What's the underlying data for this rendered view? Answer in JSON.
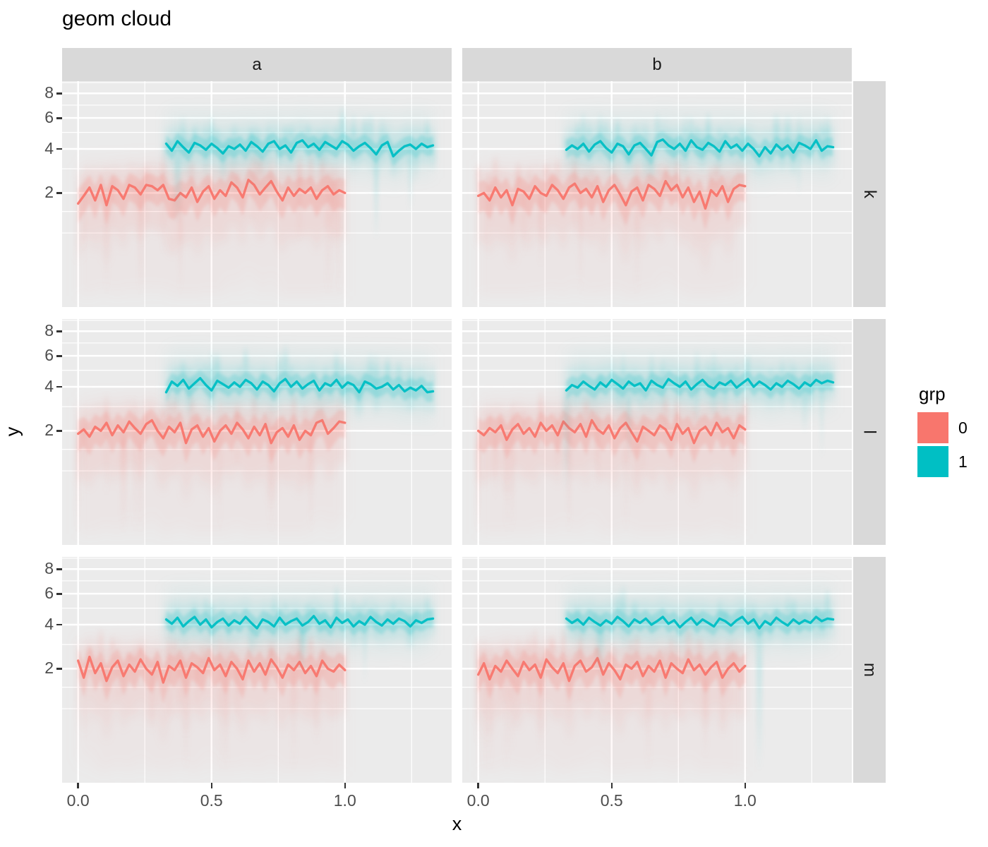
{
  "page": {
    "background": "#FFFFFF"
  },
  "chart_data": {
    "type": "line",
    "title": "geom cloud",
    "xlabel": "x",
    "ylabel": "y",
    "facet_cols": [
      "a",
      "b"
    ],
    "facet_rows": [
      "k",
      "l",
      "m"
    ],
    "x_ticks": [
      "0.0",
      "0.5",
      "1.0"
    ],
    "x_tick_values": [
      0,
      0.5,
      1
    ],
    "x_minor_values": [
      0.25,
      0.75,
      1.25
    ],
    "y_ticks": [
      "8",
      "6",
      "4",
      "2"
    ],
    "y_tick_values": [
      8,
      6,
      4,
      2
    ],
    "x_domain": [
      -0.06,
      1.4
    ],
    "y_axis": "sqrt-like",
    "grid": true,
    "legend_position": "right",
    "legend": {
      "title": "grp",
      "entries": [
        {
          "label": "0",
          "color": "#F8766D"
        },
        {
          "label": "1",
          "color": "#00BFC4"
        }
      ]
    },
    "colors": {
      "panel_bg": "#EBEBEB",
      "strip_bg": "#D9D9D9",
      "grid": "#FFFFFF",
      "tick_label": "#4D4D4D",
      "tick_mark": "#333333"
    },
    "cloud_style": {
      "0": {
        "bands": [
          [
            1.5,
            2.1,
            0.045,
            10
          ],
          [
            0.95,
            1.25,
            0.1,
            6
          ],
          [
            0.5,
            0.55,
            0.2,
            2
          ]
        ],
        "streaks": {
          "prob": 0.62,
          "up_max": 1.5,
          "down_max": 1.4,
          "deep_prob": 0.2,
          "deep_extra": 2.2,
          "blur": 3
        }
      },
      "1": {
        "bands": [
          [
            2.5,
            1.6,
            0.045,
            10
          ],
          [
            1.2,
            0.95,
            0.11,
            6
          ],
          [
            0.55,
            0.5,
            0.2,
            2
          ]
        ],
        "streaks": {
          "prob": 0.62,
          "up_max": 2.4,
          "down_max": 1.2,
          "deep_prob": 0.12,
          "deep_extra": 1.7,
          "blur": 3
        }
      }
    },
    "panels": [
      {
        "col": "a",
        "row": "k",
        "series": [
          {
            "grp": "0",
            "x_start": 0.0,
            "x_end": 1.0,
            "y": [
              1.65,
              1.9,
              2.2,
              1.75,
              2.3,
              1.6,
              2.25,
              2.1,
              1.8,
              2.3,
              2.2,
              1.95,
              2.3,
              2.25,
              2.1,
              2.3,
              1.8,
              1.75,
              2.0,
              1.85,
              2.2,
              1.7,
              2.05,
              2.25,
              1.8,
              2.1,
              1.9,
              2.4,
              2.2,
              1.85,
              2.5,
              2.3,
              1.95,
              2.2,
              2.45,
              2.05,
              1.75,
              2.2,
              1.9,
              2.15,
              2.0,
              2.2,
              1.8,
              2.1,
              2.25,
              1.95,
              2.1,
              2.0
            ]
          },
          {
            "grp": "1",
            "x_start": 0.33,
            "x_end": 1.33,
            "y": [
              4.3,
              3.9,
              4.45,
              4.1,
              3.8,
              4.35,
              4.2,
              3.95,
              4.3,
              4.05,
              3.75,
              4.15,
              4.0,
              4.25,
              3.9,
              4.4,
              4.15,
              3.85,
              4.3,
              4.45,
              4.0,
              4.2,
              3.8,
              4.35,
              4.5,
              4.1,
              4.3,
              3.95,
              4.4,
              4.2,
              4.0,
              4.45,
              4.25,
              3.9,
              4.15,
              4.35,
              4.05,
              3.7,
              4.2,
              4.4,
              3.6,
              3.9,
              4.15,
              4.25,
              4.0,
              4.3,
              4.1,
              4.2
            ]
          }
        ]
      },
      {
        "col": "b",
        "row": "k",
        "series": [
          {
            "grp": "0",
            "x_start": 0.0,
            "x_end": 1.0,
            "y": [
              1.9,
              2.0,
              1.75,
              2.2,
              1.85,
              2.1,
              1.6,
              2.15,
              2.05,
              1.8,
              2.25,
              2.0,
              1.9,
              2.3,
              2.1,
              1.8,
              2.2,
              2.35,
              2.0,
              2.15,
              1.85,
              2.25,
              1.7,
              2.1,
              2.3,
              1.95,
              1.6,
              2.05,
              2.2,
              1.75,
              2.3,
              2.15,
              1.9,
              2.45,
              2.1,
              2.3,
              1.85,
              2.2,
              1.7,
              2.05,
              1.5,
              2.1,
              1.9,
              2.25,
              1.7,
              2.15,
              2.3,
              2.25
            ]
          },
          {
            "grp": "1",
            "x_start": 0.33,
            "x_end": 1.33,
            "y": [
              3.95,
              4.2,
              4.0,
              4.3,
              3.85,
              4.25,
              4.45,
              4.05,
              3.8,
              4.3,
              4.15,
              3.7,
              4.2,
              4.35,
              4.0,
              3.65,
              4.4,
              4.55,
              4.2,
              4.0,
              4.3,
              3.9,
              4.5,
              4.1,
              3.95,
              4.35,
              4.15,
              3.85,
              4.45,
              4.05,
              4.25,
              3.9,
              4.3,
              4.0,
              3.6,
              4.1,
              3.75,
              4.25,
              3.95,
              4.2,
              3.8,
              4.35,
              4.2,
              4.0,
              4.5,
              3.9,
              4.15,
              4.1
            ]
          }
        ]
      },
      {
        "col": "a",
        "row": "l",
        "series": [
          {
            "grp": "0",
            "x_start": 0.0,
            "x_end": 1.0,
            "y": [
              1.9,
              2.05,
              1.8,
              2.15,
              2.0,
              2.3,
              1.85,
              2.2,
              1.95,
              2.35,
              2.1,
              1.9,
              2.25,
              2.4,
              2.0,
              1.75,
              2.15,
              1.95,
              2.3,
              1.6,
              2.05,
              2.2,
              1.8,
              2.1,
              1.65,
              2.0,
              2.2,
              1.9,
              2.3,
              2.05,
              1.75,
              2.15,
              1.85,
              2.25,
              1.6,
              1.95,
              2.1,
              1.8,
              2.2,
              1.7,
              2.0,
              1.85,
              2.3,
              2.4,
              1.9,
              2.1,
              2.35,
              2.3
            ]
          },
          {
            "grp": "1",
            "x_start": 0.33,
            "x_end": 1.33,
            "y": [
              3.7,
              4.3,
              4.05,
              4.4,
              3.9,
              4.2,
              4.5,
              4.1,
              3.8,
              4.35,
              4.15,
              3.95,
              4.25,
              4.0,
              4.4,
              4.2,
              3.85,
              4.3,
              4.1,
              3.75,
              4.2,
              4.45,
              4.0,
              4.3,
              3.9,
              4.15,
              4.35,
              3.8,
              4.2,
              4.05,
              4.4,
              3.95,
              4.25,
              4.1,
              3.7,
              4.3,
              4.15,
              3.9,
              4.0,
              4.2,
              3.85,
              4.1,
              3.75,
              3.95,
              3.8,
              4.05,
              3.7,
              3.75
            ]
          }
        ]
      },
      {
        "col": "b",
        "row": "l",
        "series": [
          {
            "grp": "0",
            "x_start": 0.0,
            "x_end": 1.0,
            "y": [
              2.0,
              1.85,
              2.1,
              1.95,
              2.2,
              1.7,
              2.05,
              2.25,
              1.9,
              2.1,
              1.8,
              2.3,
              2.0,
              2.2,
              1.85,
              2.35,
              2.1,
              1.95,
              2.25,
              1.8,
              2.4,
              2.05,
              1.9,
              2.2,
              1.75,
              2.1,
              2.3,
              1.95,
              1.65,
              2.15,
              2.0,
              1.85,
              2.2,
              2.05,
              1.7,
              2.25,
              1.9,
              2.1,
              1.6,
              2.0,
              2.15,
              1.85,
              2.3,
              1.95,
              2.1,
              1.75,
              2.2,
              2.05
            ]
          },
          {
            "grp": "1",
            "x_start": 0.33,
            "x_end": 1.33,
            "y": [
              3.8,
              4.1,
              3.95,
              4.3,
              4.05,
              3.85,
              4.25,
              4.0,
              4.4,
              4.15,
              3.9,
              4.3,
              4.05,
              4.2,
              3.8,
              4.35,
              4.1,
              3.95,
              4.45,
              4.2,
              4.0,
              4.3,
              3.85,
              4.15,
              4.4,
              4.05,
              3.9,
              4.25,
              4.1,
              4.35,
              3.95,
              4.2,
              4.45,
              4.0,
              4.3,
              4.1,
              3.85,
              4.2,
              4.0,
              4.35,
              4.15,
              3.9,
              4.25,
              4.05,
              4.4,
              4.2,
              4.35,
              4.25
            ]
          }
        ]
      },
      {
        "col": "a",
        "row": "m",
        "series": [
          {
            "grp": "0",
            "x_start": 0.0,
            "x_end": 1.0,
            "y": [
              2.3,
              1.7,
              2.45,
              1.85,
              2.2,
              1.6,
              2.05,
              2.3,
              1.75,
              2.15,
              1.9,
              2.35,
              2.0,
              1.8,
              2.25,
              1.55,
              2.1,
              1.95,
              2.3,
              1.7,
              2.2,
              2.05,
              1.85,
              2.4,
              1.95,
              2.15,
              1.75,
              2.25,
              2.0,
              1.65,
              2.3,
              1.9,
              2.2,
              1.8,
              2.35,
              2.05,
              1.7,
              2.15,
              1.95,
              2.25,
              1.85,
              2.1,
              1.75,
              2.3,
              2.0,
              1.9,
              2.15,
              1.95
            ]
          },
          {
            "grp": "1",
            "x_start": 0.33,
            "x_end": 1.33,
            "y": [
              4.3,
              4.05,
              4.4,
              3.9,
              4.2,
              4.45,
              4.0,
              4.3,
              3.85,
              4.15,
              4.35,
              3.95,
              4.25,
              4.05,
              4.45,
              4.1,
              3.8,
              4.3,
              4.15,
              3.9,
              4.4,
              4.0,
              4.2,
              4.35,
              3.95,
              4.15,
              4.5,
              4.05,
              4.25,
              3.85,
              4.4,
              4.1,
              4.3,
              3.9,
              4.2,
              4.0,
              4.45,
              4.15,
              3.95,
              4.3,
              4.05,
              4.35,
              4.2,
              3.9,
              4.25,
              4.1,
              4.3,
              4.35
            ]
          }
        ]
      },
      {
        "col": "b",
        "row": "m",
        "series": [
          {
            "grp": "0",
            "x_start": 0.0,
            "x_end": 1.0,
            "y": [
              1.8,
              2.2,
              1.65,
              2.1,
              1.9,
              2.3,
              2.0,
              1.75,
              2.25,
              1.95,
              2.15,
              1.7,
              2.35,
              2.05,
              1.85,
              2.2,
              1.6,
              2.1,
              2.3,
              1.9,
              2.05,
              2.4,
              1.8,
              2.2,
              1.95,
              1.65,
              2.15,
              2.0,
              2.25,
              1.75,
              2.1,
              1.9,
              2.3,
              1.7,
              2.2,
              2.0,
              1.85,
              2.35,
              1.95,
              2.15,
              1.8,
              2.05,
              2.25,
              1.7,
              2.0,
              2.2,
              1.9,
              2.1
            ]
          },
          {
            "grp": "1",
            "x_start": 0.33,
            "x_end": 1.33,
            "y": [
              4.35,
              4.1,
              4.3,
              4.0,
              4.4,
              4.15,
              3.95,
              4.25,
              4.05,
              4.45,
              4.2,
              3.9,
              4.3,
              4.1,
              4.35,
              4.0,
              4.2,
              4.45,
              4.05,
              4.25,
              3.85,
              4.15,
              4.4,
              4.0,
              4.3,
              4.1,
              3.9,
              4.35,
              4.2,
              3.95,
              4.25,
              4.45,
              4.05,
              4.3,
              3.8,
              4.2,
              4.0,
              4.4,
              4.15,
              3.95,
              4.3,
              4.05,
              4.25,
              4.1,
              4.45,
              4.2,
              4.35,
              4.3
            ]
          }
        ]
      }
    ]
  }
}
